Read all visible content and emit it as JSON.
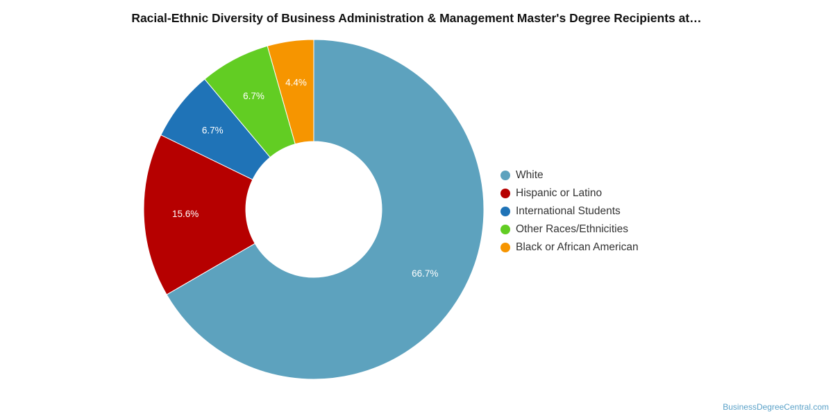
{
  "chart_data": {
    "type": "pie",
    "title": "Racial-Ethnic Diversity of Business Administration & Management Master's Degree Recipients at…",
    "donut": true,
    "categories": [
      "White",
      "Hispanic or Latino",
      "International Students",
      "Other Races/Ethnicities",
      "Black or African American"
    ],
    "values": [
      66.7,
      15.6,
      6.7,
      6.7,
      4.4
    ],
    "value_labels": [
      "66.7%",
      "15.6%",
      "6.7%",
      "6.7%",
      "4.4%"
    ],
    "colors": [
      "#5da2be",
      "#b60000",
      "#1f73b7",
      "#62cd23",
      "#f69500"
    ],
    "legend_placement": "right"
  },
  "credit": "BusinessDegreeCentral.com"
}
